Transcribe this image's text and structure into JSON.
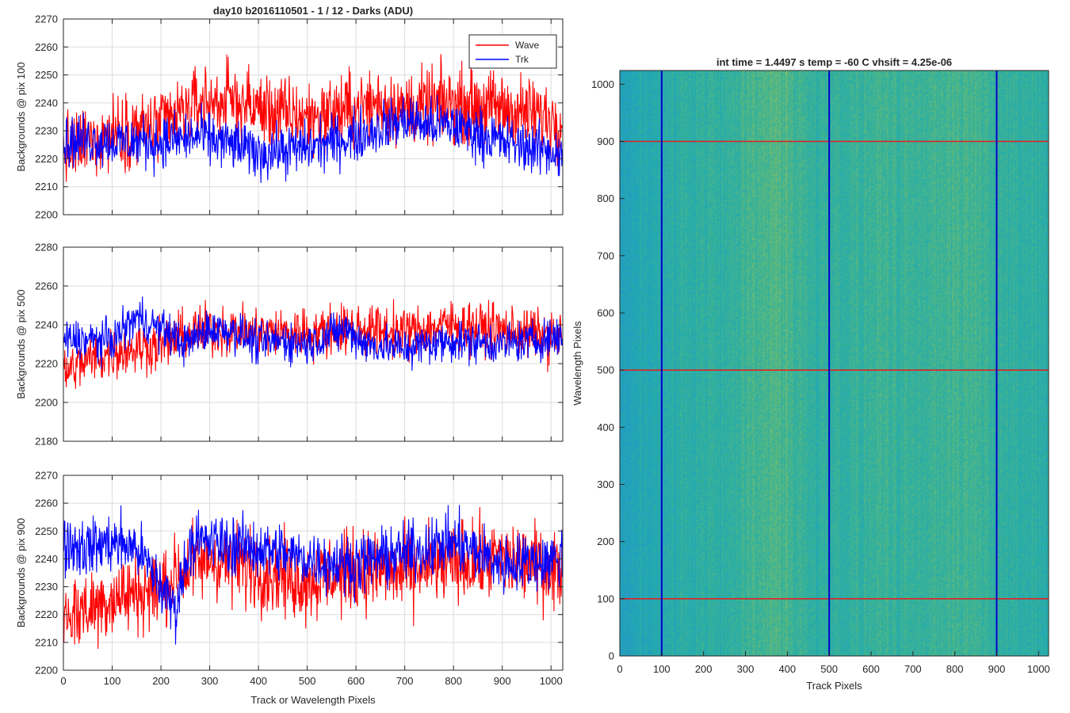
{
  "chart_data": [
    {
      "type": "line",
      "title": "day10 b2016110501 - 1 / 12 - Darks (ADU)",
      "xlabel": "",
      "ylabel": "Backgrounds @ pix 100",
      "xlim": [
        0,
        1024
      ],
      "ylim": [
        2200,
        2270
      ],
      "xticks": [
        0,
        100,
        200,
        300,
        400,
        500,
        600,
        700,
        800,
        900,
        1000
      ],
      "yticks": [
        2200,
        2210,
        2220,
        2230,
        2240,
        2250,
        2260,
        2270
      ],
      "show_xtick_labels": false,
      "grid": true,
      "legend": {
        "position": "top-right",
        "entries": [
          "Wave",
          "Trk"
        ]
      },
      "series": [
        {
          "name": "Wave",
          "color": "#ff0000",
          "profile": {
            "x": [
              0,
              50,
              100,
              200,
              280,
              350,
              400,
              450,
              500,
              600,
              650,
              700,
              800,
              900,
              1024
            ],
            "y": [
              2222,
              2226,
              2230,
              2232,
              2240,
              2241,
              2238,
              2236,
              2235,
              2238,
              2240,
              2238,
              2240,
              2238,
              2234
            ]
          },
          "noise_amplitude": 10
        },
        {
          "name": "Trk",
          "color": "#0000ff",
          "profile": {
            "x": [
              0,
              50,
              100,
              200,
              280,
              350,
              400,
              450,
              500,
              600,
              650,
              700,
              750,
              800,
              900,
              1024
            ],
            "y": [
              2226,
              2227,
              2226,
              2226,
              2228,
              2225,
              2222,
              2223,
              2224,
              2228,
              2231,
              2234,
              2232,
              2232,
              2226,
              2222
            ]
          },
          "noise_amplitude": 7
        }
      ]
    },
    {
      "type": "line",
      "title": "",
      "xlabel": "",
      "ylabel": "Backgrounds @ pix 500",
      "xlim": [
        0,
        1024
      ],
      "ylim": [
        2180,
        2280
      ],
      "xticks": [
        0,
        100,
        200,
        300,
        400,
        500,
        600,
        700,
        800,
        900,
        1000
      ],
      "yticks": [
        2180,
        2200,
        2220,
        2240,
        2260,
        2280
      ],
      "show_xtick_labels": false,
      "grid": true,
      "series": [
        {
          "name": "Wave",
          "color": "#ff0000",
          "profile": {
            "x": [
              0,
              50,
              100,
              200,
              300,
              400,
              500,
              600,
              700,
              800,
              900,
              1024
            ],
            "y": [
              2215,
              2222,
              2226,
              2230,
              2238,
              2236,
              2236,
              2238,
              2236,
              2240,
              2237,
              2233
            ]
          },
          "noise_amplitude": 10
        },
        {
          "name": "Trk",
          "color": "#0000ff",
          "profile": {
            "x": [
              0,
              100,
              150,
              200,
              250,
              300,
              350,
              400,
              450,
              500,
              580,
              620,
              700,
              800,
              900,
              1024
            ],
            "y": [
              2232,
              2232,
              2244,
              2238,
              2230,
              2238,
              2237,
              2230,
              2232,
              2230,
              2238,
              2230,
              2228,
              2232,
              2230,
              2234
            ]
          },
          "noise_amplitude": 8
        }
      ]
    },
    {
      "type": "line",
      "title": "",
      "xlabel": "Track or Wavelength Pixels",
      "ylabel": "Backgrounds @ pix 900",
      "xlim": [
        0,
        1024
      ],
      "ylim": [
        2200,
        2270
      ],
      "xticks": [
        0,
        100,
        200,
        300,
        400,
        500,
        600,
        700,
        800,
        900,
        1000
      ],
      "yticks": [
        2200,
        2210,
        2220,
        2230,
        2240,
        2250,
        2260,
        2270
      ],
      "show_xtick_labels": true,
      "grid": true,
      "series": [
        {
          "name": "Wave",
          "color": "#ff0000",
          "profile": {
            "x": [
              0,
              50,
              100,
              200,
              250,
              300,
              400,
              500,
              600,
              700,
              800,
              900,
              1024
            ],
            "y": [
              2220,
              2222,
              2226,
              2230,
              2236,
              2240,
              2236,
              2232,
              2236,
              2235,
              2238,
              2240,
              2236
            ]
          },
          "noise_amplitude": 11
        },
        {
          "name": "Trk",
          "color": "#0000ff",
          "profile": {
            "x": [
              0,
              50,
              100,
              150,
              200,
              230,
              260,
              300,
              400,
              500,
              580,
              700,
              800,
              900,
              1024
            ],
            "y": [
              2246,
              2244,
              2246,
              2244,
              2230,
              2222,
              2246,
              2246,
              2244,
              2240,
              2238,
              2242,
              2246,
              2238,
              2240
            ]
          },
          "noise_amplitude": 8
        }
      ]
    },
    {
      "type": "heatmap",
      "title": "int time = 1.4497 s    temp = -60 C    vhsift = 4.25e-06",
      "xlabel": "Track Pixels",
      "ylabel": "Wavelength Pixels",
      "xlim": [
        0,
        1024
      ],
      "ylim": [
        0,
        1024
      ],
      "xticks": [
        0,
        100,
        200,
        300,
        400,
        500,
        600,
        700,
        800,
        900,
        1000
      ],
      "yticks": [
        0,
        100,
        200,
        300,
        400,
        500,
        600,
        700,
        800,
        900,
        1000
      ],
      "colormap": [
        "#2a8cd1",
        "#1fa6b8",
        "#34b29a",
        "#7bbd6a",
        "#b3c04e"
      ],
      "marker_lines": {
        "vertical": {
          "x": [
            100,
            500,
            900
          ],
          "color": "#0000cc"
        },
        "horizontal": {
          "y": [
            100,
            500,
            900
          ],
          "color": "#dd2222"
        }
      }
    }
  ]
}
